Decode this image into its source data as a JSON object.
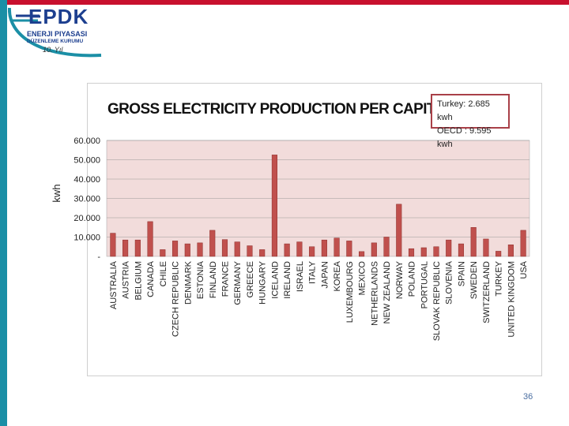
{
  "logo": {
    "brand": "EPDK",
    "line1": "ENERJI PIYASASI",
    "line2": "DÜZENLEME KURUMU",
    "signature": "10. Yıl"
  },
  "page": {
    "number": "36"
  },
  "colors": {
    "accent": "#c8102e",
    "side": "#1b8fa6",
    "bar": "#c0504d",
    "plot_bg": "#f2dcdb"
  },
  "chart_data": {
    "type": "bar",
    "title": "GROSS ELECTRICITY PRODUCTION PER CAPITA",
    "xlabel": "",
    "ylabel": "kwh",
    "ylim": [
      0,
      60000
    ],
    "ytick_values": [
      0,
      10000,
      20000,
      30000,
      40000,
      50000,
      60000
    ],
    "ytick_labels": [
      "-",
      "10.000",
      "20.000",
      "30.000",
      "40.000",
      "50.000",
      "60.000"
    ],
    "annotation": [
      "Turkey: 2.685 kwh",
      "OECD : 9.595 kwh"
    ],
    "categories": [
      "AUSTRALIA",
      "AUSTRIA",
      "BELGIUM",
      "CANADA",
      "CHILE",
      "CZECH REPUBLIC",
      "DENMARK",
      "ESTONIA",
      "FINLAND",
      "FRANCE",
      "GERMANY",
      "GREECE",
      "HUNGARY",
      "ICELAND",
      "IRELAND",
      "ISRAEL",
      "ITALY",
      "JAPAN",
      "KOREA",
      "LUXEMBOURG",
      "MEXICO",
      "NETHERLANDS",
      "NEW ZEALAND",
      "NORWAY",
      "POLAND",
      "PORTUGAL",
      "SLOVAK REPUBLIC",
      "SLOVENIA",
      "SPAIN",
      "SWEDEN",
      "SWITZERLAND",
      "TURKEY",
      "UNITED KINGDOM",
      "USA"
    ],
    "values": [
      12000,
      8500,
      8500,
      18000,
      3500,
      8000,
      6500,
      7000,
      13500,
      8700,
      7500,
      5500,
      3500,
      52500,
      6500,
      7500,
      5000,
      8500,
      9500,
      8000,
      2500,
      7000,
      10000,
      27000,
      4000,
      4500,
      5000,
      8500,
      6500,
      15000,
      9000,
      2685,
      6000,
      13500
    ]
  }
}
